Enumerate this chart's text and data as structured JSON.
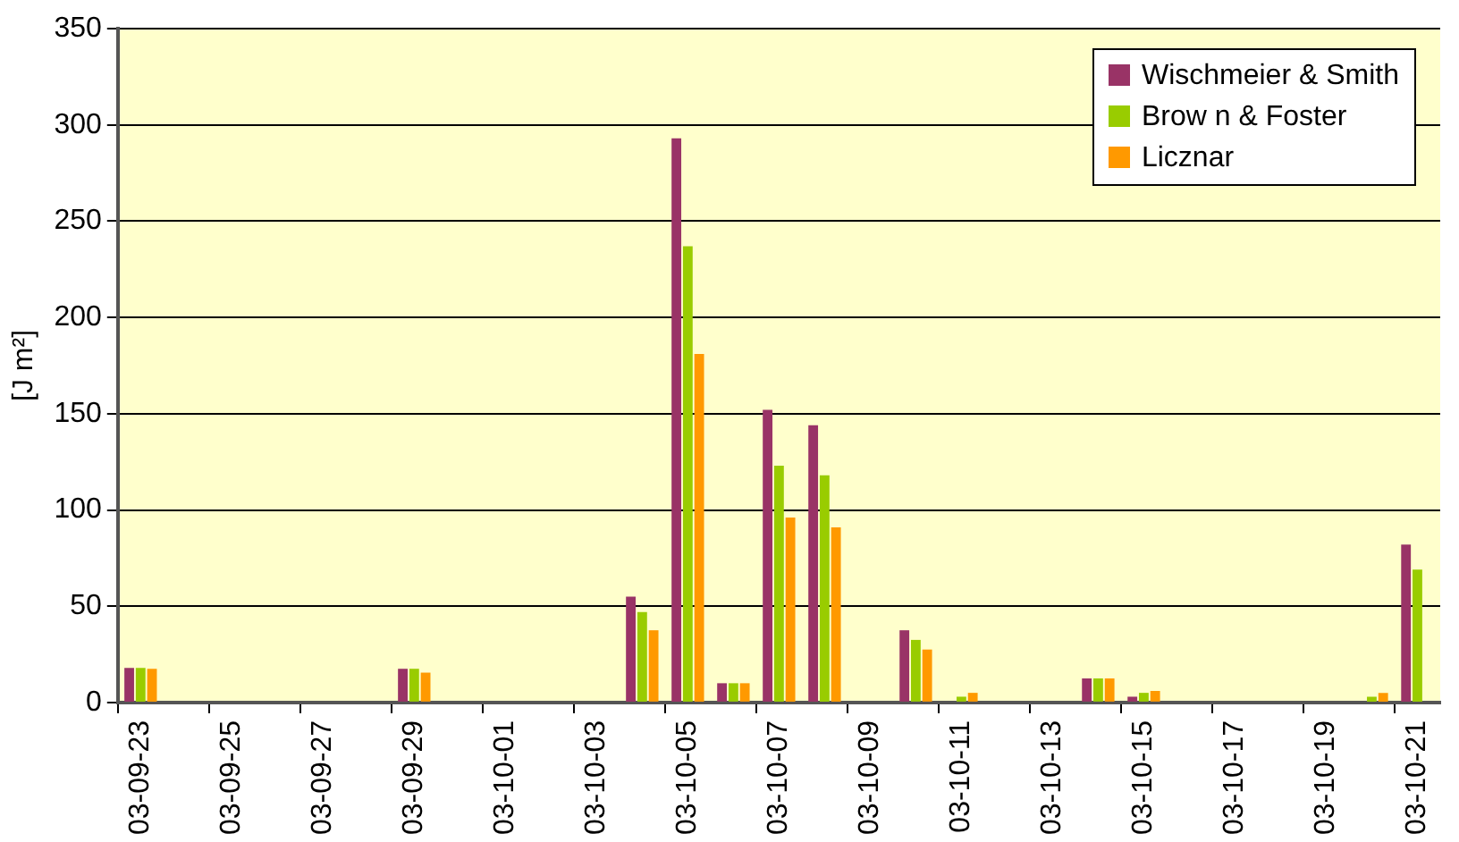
{
  "chart_data": {
    "type": "bar",
    "ylabel": "[J m²]",
    "categories": [
      "03-09-23",
      null,
      "03-09-25",
      null,
      "03-09-27",
      null,
      "03-09-29",
      null,
      "03-10-01",
      null,
      "03-10-03",
      null,
      "03-10-05",
      null,
      "03-10-07",
      null,
      "03-10-09",
      null,
      "03-10-11",
      null,
      "03-10-13",
      null,
      "03-10-15",
      null,
      "03-10-17",
      null,
      "03-10-19",
      null,
      "03-10-21"
    ],
    "series": [
      {
        "name": "Wischmeier & Smith",
        "color": "#993366",
        "values": [
          18,
          0,
          0,
          0,
          0,
          0,
          17.5,
          0,
          0,
          0,
          0,
          55,
          293,
          10,
          152,
          144,
          0,
          37.5,
          0,
          0,
          0,
          12.5,
          3,
          0,
          0,
          0,
          0,
          0,
          82
        ]
      },
      {
        "name": "Brow n & Foster",
        "color": "#99cc00",
        "values": [
          18,
          0,
          0,
          0,
          0,
          0,
          17.5,
          0,
          0,
          0,
          0,
          47,
          237,
          10,
          123,
          118,
          0,
          32.5,
          3,
          0,
          0,
          12.5,
          5,
          0,
          0,
          0,
          0,
          3,
          69
        ]
      },
      {
        "name": "Licznar",
        "color": "#ff9900",
        "values": [
          17.5,
          0,
          0,
          0,
          0,
          0,
          15.5,
          0,
          0,
          0,
          0,
          37.5,
          181,
          10,
          96,
          91,
          0,
          27.5,
          5,
          0,
          0,
          12.5,
          6,
          0,
          0,
          0,
          0,
          5,
          null
        ]
      }
    ],
    "ylim": [
      0,
      350
    ],
    "yticks": [
      0,
      50,
      100,
      150,
      200,
      250,
      300,
      350
    ],
    "grid": "y",
    "legend": "top right"
  }
}
